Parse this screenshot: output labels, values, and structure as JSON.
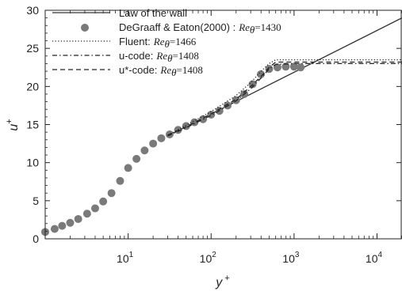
{
  "chart_data": {
    "type": "line",
    "x_scale": "log",
    "xlim": [
      1,
      20000
    ],
    "ylim": [
      0,
      30
    ],
    "xlabel": "y +",
    "ylabel": "u+",
    "x_tick_labels": [
      {
        "base": "10",
        "exp": "1",
        "value": 10
      },
      {
        "base": "10",
        "exp": "2",
        "value": 100
      },
      {
        "base": "10",
        "exp": "3",
        "value": 1000
      },
      {
        "base": "10",
        "exp": "4",
        "value": 10000
      }
    ],
    "y_ticks": [
      0,
      5,
      10,
      15,
      20,
      25,
      30
    ],
    "legend_position": "top-left",
    "series": [
      {
        "name": "Law of the wall",
        "style": "solid",
        "x": [
          30,
          20000
        ],
        "y": [
          13.5,
          29
        ]
      },
      {
        "name": "DeGraaff & Eaton(2000) :",
        "re_label": "Re",
        "re_sub": "θ",
        "re_value": "=1430",
        "style": "markers",
        "x": [
          1.0,
          1.3,
          1.6,
          2.0,
          2.5,
          3.2,
          4.0,
          5.0,
          6.3,
          8.0,
          10.0,
          12.6,
          15.8,
          20.0,
          25.1,
          31.6,
          40,
          50,
          63,
          80,
          100,
          126,
          158,
          200,
          251,
          316,
          398,
          501,
          631,
          794,
          1000,
          1200
        ],
        "y": [
          0.9,
          1.3,
          1.7,
          2.1,
          2.6,
          3.3,
          4.0,
          4.9,
          6.0,
          7.6,
          9.3,
          10.5,
          11.6,
          12.5,
          13.2,
          13.7,
          14.3,
          14.8,
          15.3,
          15.7,
          16.3,
          16.8,
          17.5,
          18.2,
          19.0,
          20.3,
          21.6,
          22.3,
          22.5,
          22.6,
          22.6,
          22.5
        ]
      },
      {
        "name": "Fluent:",
        "re_label": "Re",
        "re_sub": "θ",
        "re_value": "=1466",
        "style": "dotted",
        "x": [
          30,
          50,
          100,
          200,
          300,
          400,
          500,
          600,
          1000,
          2000,
          5000,
          20000
        ],
        "y": [
          13.6,
          14.9,
          16.7,
          18.8,
          20.5,
          22.0,
          23.0,
          23.5,
          23.5,
          23.5,
          23.5,
          23.5
        ]
      },
      {
        "name": "u-code:",
        "re_label": "Re",
        "re_sub": "θ",
        "re_value": "=1408",
        "style": "dashdot",
        "x": [
          30,
          50,
          100,
          200,
          300,
          400,
          500,
          600,
          1000,
          2000,
          5000,
          20000
        ],
        "y": [
          13.5,
          14.6,
          16.2,
          18.1,
          19.7,
          21.1,
          22.3,
          22.9,
          23.0,
          23.0,
          23.0,
          23.0
        ]
      },
      {
        "name": "u*-code:",
        "re_label": "Re",
        "re_sub": "θ",
        "re_value": "=1408",
        "style": "dashed",
        "x": [
          30,
          50,
          100,
          200,
          300,
          400,
          500,
          600,
          1000,
          2000,
          5000,
          20000
        ],
        "y": [
          13.6,
          14.7,
          16.4,
          18.3,
          20.0,
          21.3,
          22.5,
          23.2,
          23.2,
          23.2,
          23.2,
          23.2
        ]
      }
    ]
  }
}
